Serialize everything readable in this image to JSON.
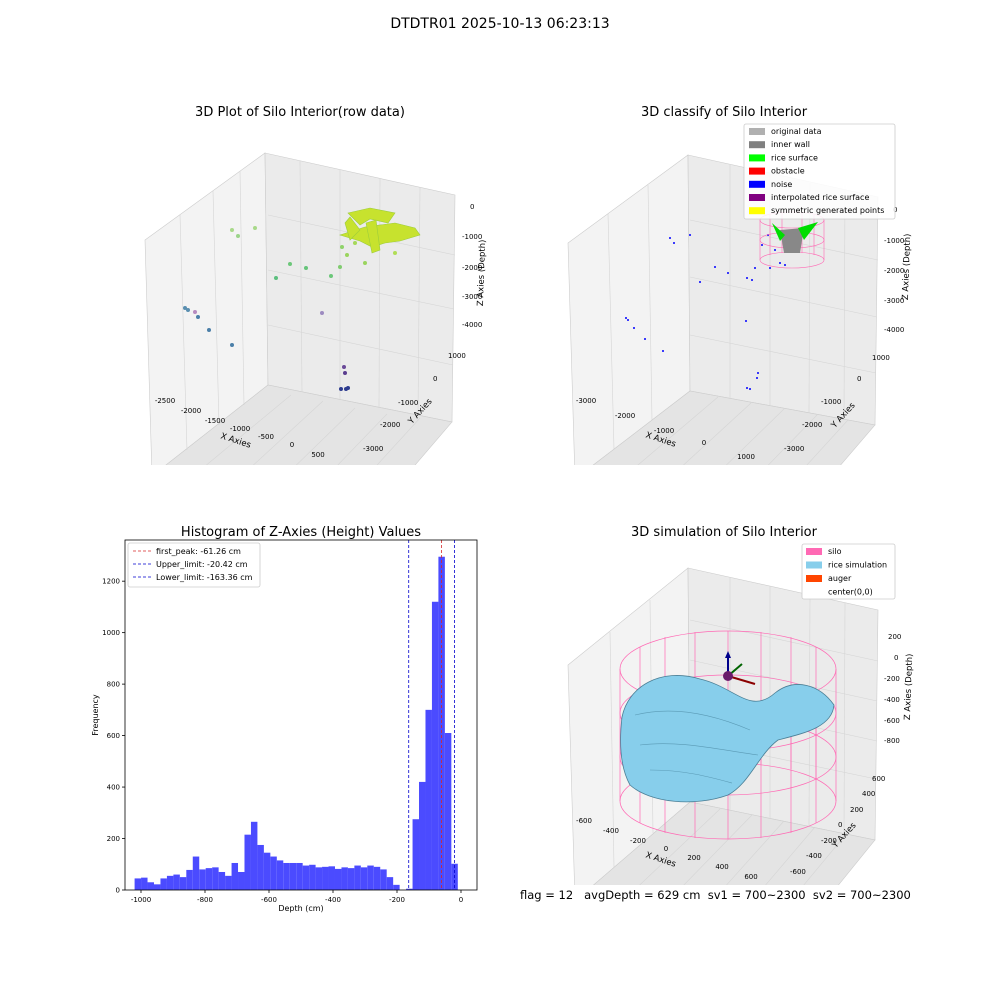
{
  "figure": {
    "suptitle": "DTDTR01 2025-10-13 06:23:13",
    "footer": "flag = 12   avgDepth = 629 cm  sv1 = 700~2300  sv2 = 700~2300"
  },
  "colors": {
    "hist_bar": "#4b4bff",
    "peak_line": "#d62728",
    "limit_line": "#0000cc",
    "pane_fill": "#f2f2f2",
    "grid": "#d8d8d8",
    "silo": "#ff69b4",
    "rice": "#87ceeb",
    "auger": "#ff4500"
  },
  "plots": {
    "raw": {
      "title": "3D Plot of Silo Interior(row data)",
      "xlabel": "X Axies",
      "ylabel": "Y Axies",
      "zlabel": "Z Axies (Depth)",
      "xticks": [
        "-2500",
        "-2000",
        "-1500",
        "-1000",
        "-500",
        "0",
        "500"
      ],
      "yticks": [
        "1000",
        "0",
        "-1000",
        "-2000",
        "-3000"
      ],
      "zticks": [
        "0",
        "-1000",
        "-2000",
        "-3000",
        "-4000"
      ]
    },
    "classify": {
      "title": "3D classify of Silo Interior",
      "xlabel": "X Axies",
      "ylabel": "Y Axies",
      "zlabel": "Z Axies (Depth)",
      "xticks": [
        "-3000",
        "-2000",
        "-1000",
        "0",
        "1000"
      ],
      "yticks": [
        "1000",
        "0",
        "-1000",
        "-2000",
        "-3000"
      ],
      "zticks": [
        "0",
        "-1000",
        "-2000",
        "-3000",
        "-4000"
      ],
      "legend": [
        {
          "label": "original data",
          "color": "#b0b0b0"
        },
        {
          "label": "inner wall",
          "color": "#808080"
        },
        {
          "label": "rice surface",
          "color": "#00ff00"
        },
        {
          "label": "obstacle",
          "color": "#ff0000"
        },
        {
          "label": "noise",
          "color": "#0000ff"
        },
        {
          "label": "interpolated rice surface",
          "color": "#800080"
        },
        {
          "label": "symmetric generated points",
          "color": "#ffff00"
        }
      ]
    },
    "simulation": {
      "title": "3D simulation of Silo Interior",
      "xlabel": "X Axies",
      "ylabel": "Y Axies",
      "zlabel": "Z Axies (Depth)",
      "xticks": [
        "-600",
        "-400",
        "-200",
        "0",
        "200",
        "400",
        "600"
      ],
      "yticks": [
        "600",
        "400",
        "200",
        "0",
        "-200",
        "-400",
        "-600"
      ],
      "zticks": [
        "200",
        "0",
        "-200",
        "-400",
        "-600",
        "-800"
      ],
      "legend": [
        {
          "label": "silo",
          "color": "#ff69b4"
        },
        {
          "label": "rice simulation",
          "color": "#87ceeb"
        },
        {
          "label": "auger",
          "color": "#ff4500"
        },
        {
          "label": "center(0,0)",
          "color": ""
        }
      ]
    }
  },
  "chart_data": [
    {
      "type": "bar",
      "title": "Histogram of Z-Axies (Height) Values",
      "xlabel": "Depth (cm)",
      "ylabel": "Frequency",
      "xlim": [
        -1050,
        50
      ],
      "ylim": [
        0,
        1360
      ],
      "xticks": [
        -1000,
        -800,
        -600,
        -400,
        -200,
        0
      ],
      "yticks": [
        0,
        200,
        400,
        600,
        800,
        1000,
        1200
      ],
      "bin_start": -1020,
      "bin_width": 20.2,
      "values": [
        45,
        48,
        30,
        22,
        45,
        55,
        60,
        50,
        78,
        130,
        80,
        85,
        88,
        70,
        55,
        105,
        70,
        215,
        265,
        175,
        145,
        130,
        115,
        105,
        105,
        105,
        95,
        98,
        88,
        90,
        92,
        82,
        88,
        85,
        95,
        88,
        95,
        90,
        80,
        50,
        20,
        0,
        5,
        275,
        420,
        700,
        1120,
        1295,
        610,
        102
      ],
      "lines": [
        {
          "label": "first_peak: -61.26 cm",
          "x": -61.26,
          "color": "#d62728"
        },
        {
          "label": "Upper_limit: -20.42 cm",
          "x": -20.42,
          "color": "#0000cc"
        },
        {
          "label": "Lower_limit: -163.36 cm",
          "x": -163.36,
          "color": "#0000cc"
        }
      ],
      "grid": false,
      "legend_position": "top-left"
    }
  ]
}
